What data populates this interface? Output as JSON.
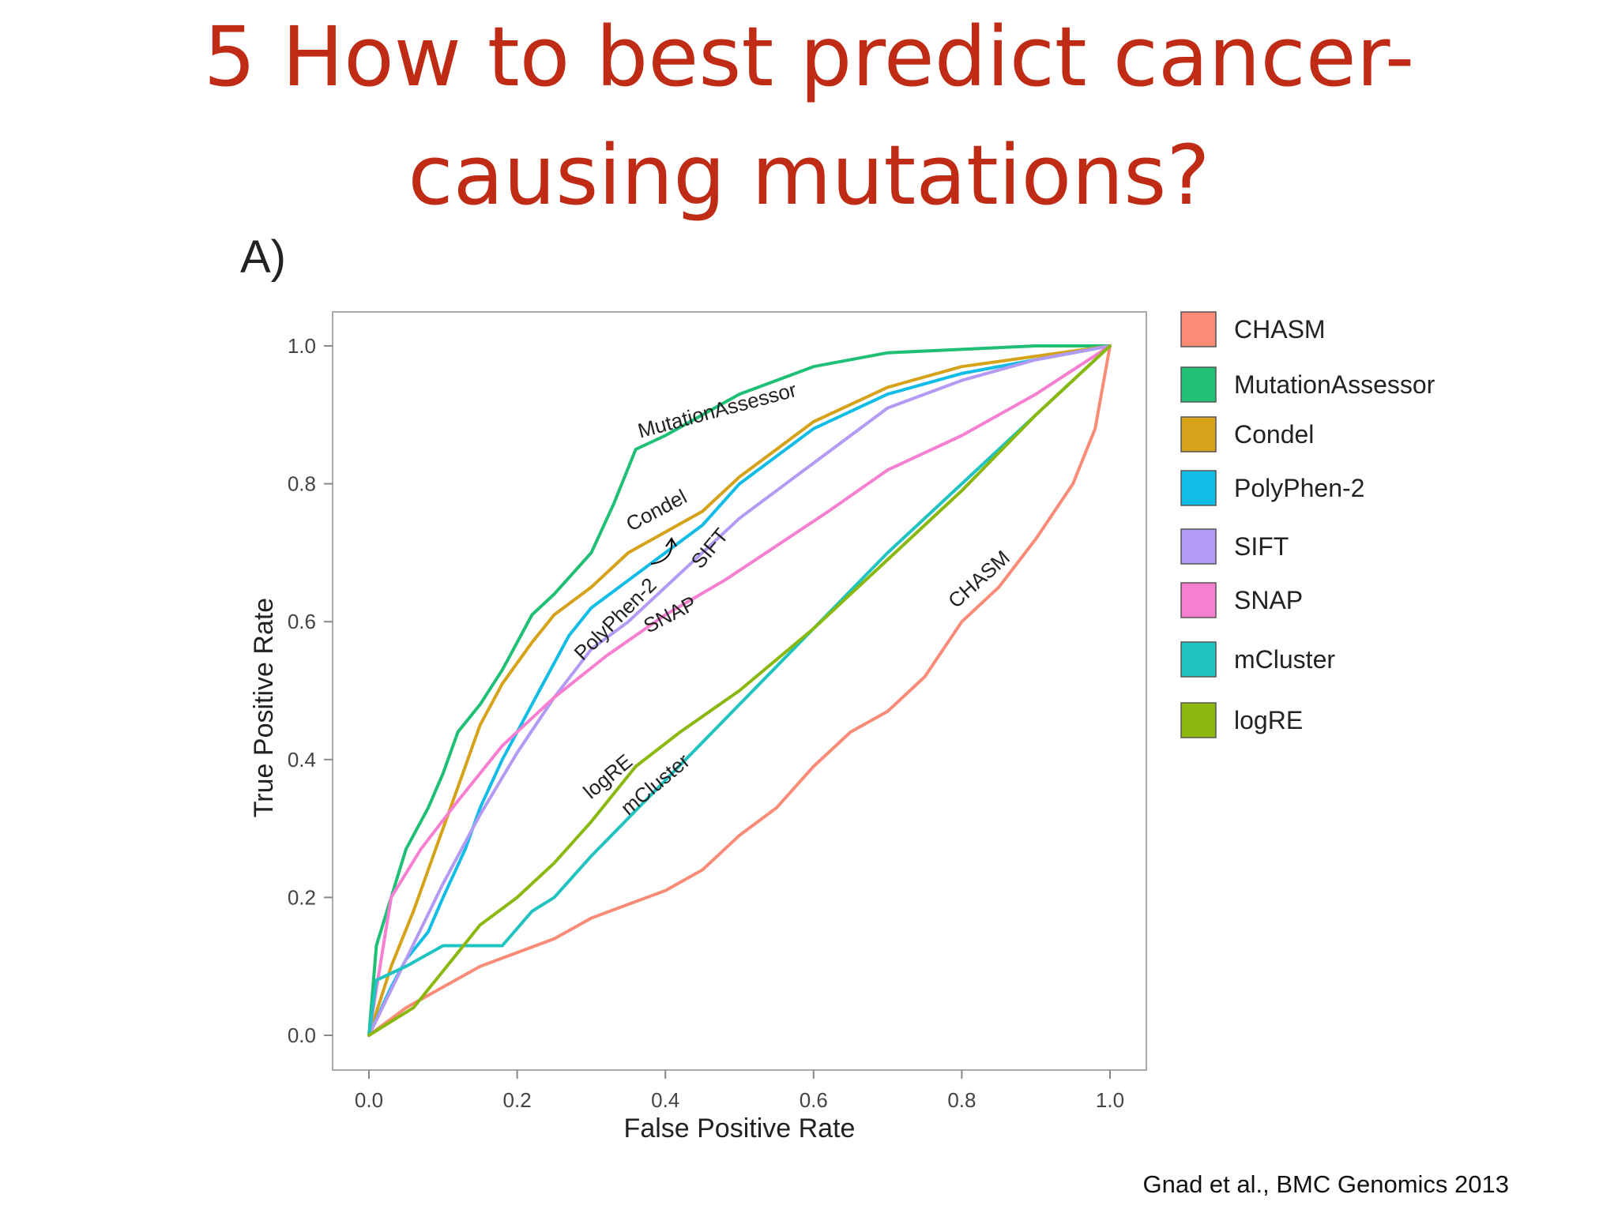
{
  "slide": {
    "title_line1": "5 How to best predict cancer-",
    "title_line2": "causing mutations?",
    "panel_label": "A)",
    "citation": "Gnad et al., BMC Genomics 2013",
    "title_color": "#bf2b15"
  },
  "chart_data": {
    "type": "line",
    "title": "",
    "xlabel": "False Positive Rate",
    "ylabel": "True Positive Rate",
    "xlim": [
      0,
      1
    ],
    "ylim": [
      0,
      1
    ],
    "xticks": [
      "0.0",
      "0.2",
      "0.4",
      "0.6",
      "0.8",
      "1.0"
    ],
    "yticks": [
      "0.0",
      "0.2",
      "0.4",
      "0.6",
      "0.8",
      "1.0"
    ],
    "grid": false,
    "legend_position": "right",
    "series": [
      {
        "name": "CHASM",
        "color": "#f98b77",
        "x": [
          0,
          0.05,
          0.1,
          0.15,
          0.2,
          0.25,
          0.3,
          0.35,
          0.4,
          0.45,
          0.5,
          0.55,
          0.6,
          0.65,
          0.7,
          0.75,
          0.8,
          0.85,
          0.9,
          0.95,
          0.98,
          1.0
        ],
        "y": [
          0,
          0.04,
          0.07,
          0.1,
          0.12,
          0.14,
          0.17,
          0.19,
          0.21,
          0.24,
          0.29,
          0.33,
          0.39,
          0.44,
          0.47,
          0.52,
          0.6,
          0.65,
          0.72,
          0.8,
          0.88,
          1.0
        ],
        "curve_label": "CHASM"
      },
      {
        "name": "MutationAssessor",
        "color": "#1fbf75",
        "x": [
          0,
          0.01,
          0.03,
          0.05,
          0.08,
          0.1,
          0.12,
          0.15,
          0.18,
          0.2,
          0.22,
          0.25,
          0.3,
          0.33,
          0.36,
          0.4,
          0.45,
          0.5,
          0.55,
          0.6,
          0.7,
          0.8,
          0.9,
          1.0
        ],
        "y": [
          0,
          0.13,
          0.2,
          0.27,
          0.33,
          0.38,
          0.44,
          0.48,
          0.53,
          0.57,
          0.61,
          0.64,
          0.7,
          0.77,
          0.85,
          0.87,
          0.9,
          0.93,
          0.95,
          0.97,
          0.99,
          0.995,
          1.0,
          1.0
        ],
        "curve_label": "MutationAssessor"
      },
      {
        "name": "Condel",
        "color": "#d5a219",
        "x": [
          0,
          0.03,
          0.06,
          0.08,
          0.1,
          0.12,
          0.15,
          0.18,
          0.2,
          0.22,
          0.25,
          0.3,
          0.35,
          0.4,
          0.45,
          0.5,
          0.55,
          0.6,
          0.7,
          0.8,
          0.9,
          1.0
        ],
        "y": [
          0,
          0.1,
          0.18,
          0.24,
          0.3,
          0.36,
          0.45,
          0.51,
          0.54,
          0.57,
          0.61,
          0.65,
          0.7,
          0.73,
          0.76,
          0.81,
          0.85,
          0.89,
          0.94,
          0.97,
          0.985,
          1.0
        ],
        "curve_label": "Condel"
      },
      {
        "name": "PolyPhen-2",
        "color": "#11bde6",
        "x": [
          0,
          0.03,
          0.05,
          0.08,
          0.1,
          0.13,
          0.15,
          0.18,
          0.2,
          0.23,
          0.27,
          0.3,
          0.35,
          0.4,
          0.45,
          0.5,
          0.55,
          0.6,
          0.7,
          0.8,
          0.9,
          1.0
        ],
        "y": [
          0,
          0.07,
          0.11,
          0.15,
          0.2,
          0.27,
          0.33,
          0.4,
          0.44,
          0.5,
          0.58,
          0.62,
          0.66,
          0.7,
          0.74,
          0.8,
          0.84,
          0.88,
          0.93,
          0.96,
          0.98,
          1.0
        ],
        "curve_label": "PolyPhen-2"
      },
      {
        "name": "SIFT",
        "color": "#b39af5",
        "x": [
          0,
          0.05,
          0.1,
          0.15,
          0.2,
          0.25,
          0.3,
          0.35,
          0.4,
          0.45,
          0.5,
          0.55,
          0.6,
          0.65,
          0.7,
          0.8,
          0.9,
          1.0
        ],
        "y": [
          0,
          0.11,
          0.22,
          0.32,
          0.41,
          0.49,
          0.56,
          0.6,
          0.65,
          0.7,
          0.75,
          0.79,
          0.83,
          0.87,
          0.91,
          0.95,
          0.98,
          1.0
        ],
        "curve_label": "SIFT"
      },
      {
        "name": "SNAP",
        "color": "#f77fd1",
        "x": [
          0,
          0.03,
          0.07,
          0.12,
          0.18,
          0.25,
          0.32,
          0.4,
          0.48,
          0.55,
          0.62,
          0.7,
          0.8,
          0.9,
          1.0
        ],
        "y": [
          0,
          0.2,
          0.27,
          0.34,
          0.42,
          0.49,
          0.55,
          0.61,
          0.66,
          0.71,
          0.76,
          0.82,
          0.87,
          0.93,
          1.0
        ],
        "curve_label": "SNAP"
      },
      {
        "name": "mCluster",
        "color": "#1fc4c2",
        "x": [
          0,
          0.01,
          0.05,
          0.1,
          0.14,
          0.18,
          0.22,
          0.25,
          0.3,
          0.4,
          0.5,
          0.6,
          0.7,
          0.8,
          0.9,
          1.0
        ],
        "y": [
          0,
          0.08,
          0.1,
          0.13,
          0.13,
          0.13,
          0.18,
          0.2,
          0.26,
          0.37,
          0.48,
          0.59,
          0.7,
          0.8,
          0.9,
          1.0
        ],
        "curve_label": "mCluster"
      },
      {
        "name": "logRE",
        "color": "#8ab80e",
        "x": [
          0,
          0.03,
          0.06,
          0.09,
          0.12,
          0.15,
          0.2,
          0.25,
          0.3,
          0.36,
          0.42,
          0.5,
          0.6,
          0.7,
          0.8,
          0.9,
          1.0
        ],
        "y": [
          0,
          0.02,
          0.04,
          0.08,
          0.12,
          0.16,
          0.2,
          0.25,
          0.31,
          0.39,
          0.44,
          0.5,
          0.59,
          0.69,
          0.79,
          0.9,
          1.0
        ],
        "curve_label": "logRE"
      }
    ]
  }
}
